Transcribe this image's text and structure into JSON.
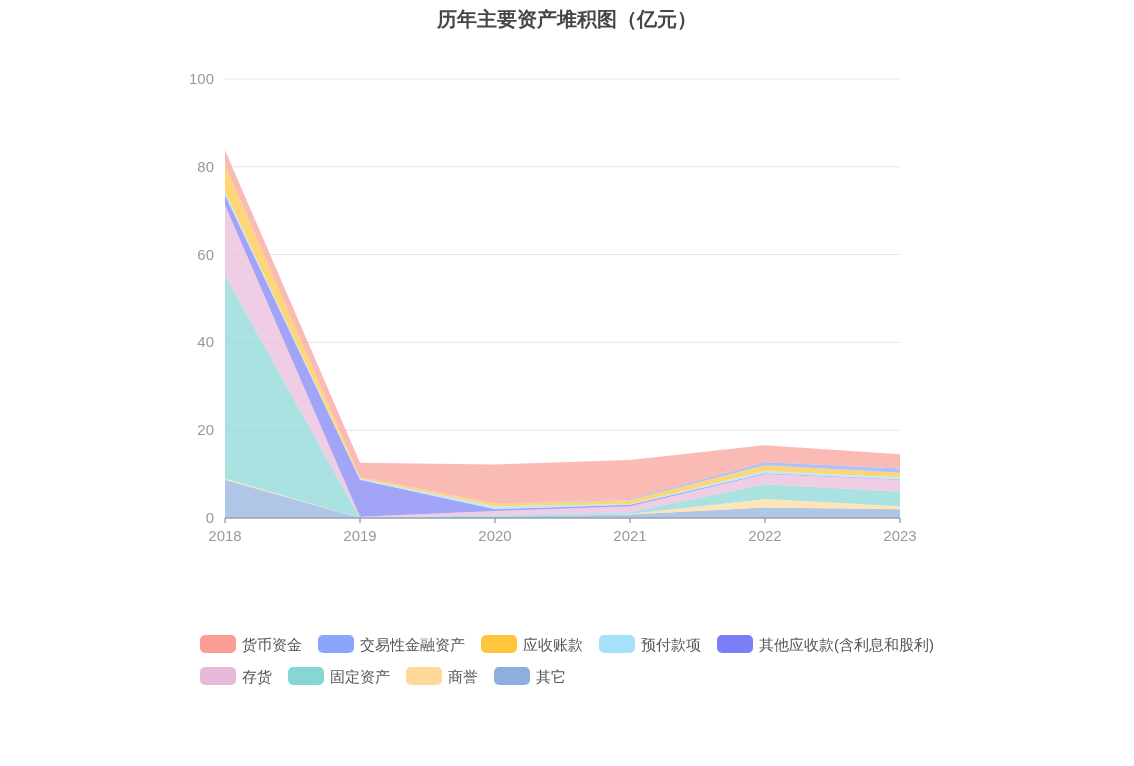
{
  "chart_data": {
    "type": "area",
    "title": "历年主要资产堆积图（亿元）",
    "stacked": true,
    "categories": [
      "2018",
      "2019",
      "2020",
      "2021",
      "2022",
      "2023"
    ],
    "series": [
      {
        "name": "其它",
        "color": "#8eaedc",
        "values": [
          8.7,
          0,
          0.3,
          0.8,
          2.4,
          2.0
        ]
      },
      {
        "name": "商誉",
        "color": "#ffd99a",
        "values": [
          0.3,
          0,
          0,
          0.1,
          1.9,
          0.7
        ]
      },
      {
        "name": "固定资产",
        "color": "#86d6d6",
        "values": [
          46.3,
          0,
          0.3,
          0.4,
          3.4,
          3.3
        ]
      },
      {
        "name": "存货",
        "color": "#e8b9da",
        "values": [
          16.0,
          0.3,
          1.0,
          1.4,
          2.3,
          2.7
        ]
      },
      {
        "name": "其他应收款(含利息和股利)",
        "color": "#7b7ef5",
        "values": [
          2.3,
          8.4,
          0.4,
          0.3,
          0.2,
          0.1
        ]
      },
      {
        "name": "预付款项",
        "color": "#a6e0fb",
        "values": [
          0.7,
          0.3,
          0.7,
          0.2,
          0.5,
          0.4
        ]
      },
      {
        "name": "应收账款",
        "color": "#ffc53d",
        "values": [
          6.1,
          0.3,
          0.6,
          0.9,
          1.3,
          1.1
        ]
      },
      {
        "name": "交易性金融资产",
        "color": "#8aa6fb",
        "values": [
          0,
          0,
          0,
          0.2,
          0.7,
          1.0
        ]
      },
      {
        "name": "货币资金",
        "color": "#fa9e95",
        "values": [
          3.4,
          3.3,
          8.9,
          8.9,
          3.9,
          3.2
        ]
      }
    ],
    "ylim": [
      0,
      100
    ],
    "yticks": [
      0,
      20,
      40,
      60,
      80,
      100
    ],
    "grid": "y",
    "legend": "bottom"
  }
}
